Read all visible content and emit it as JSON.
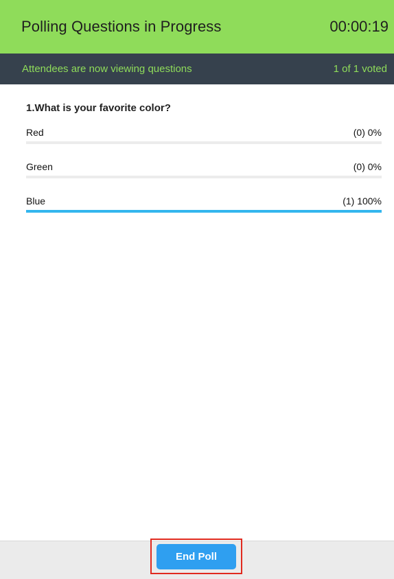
{
  "header": {
    "title": "Polling Questions in Progress",
    "timer": "00:00:19"
  },
  "status": {
    "message": "Attendees are now viewing questions",
    "voted": "1 of 1 voted"
  },
  "poll": {
    "question": "1.What is your favorite color?",
    "options": [
      {
        "label": "Red",
        "result": "(0) 0%",
        "fraction": 0
      },
      {
        "label": "Green",
        "result": "(0) 0%",
        "fraction": 0
      },
      {
        "label": "Blue",
        "result": "(1) 100%",
        "fraction": 1
      }
    ]
  },
  "footer": {
    "end_label": "End Poll"
  },
  "colors": {
    "header_bg": "#8fdc5a",
    "subbar_bg": "#36414d",
    "accent_bar": "#33b6ee",
    "button_bg": "#2f9ff0",
    "highlight": "#e0291e"
  }
}
